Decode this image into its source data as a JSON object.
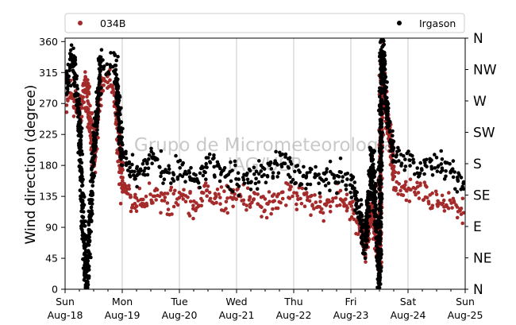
{
  "chart_data": {
    "type": "scatter",
    "ylabel": "Wind direction (degree)",
    "ylim": [
      0,
      365
    ],
    "yticks": [
      0,
      45,
      90,
      135,
      180,
      225,
      270,
      315,
      360
    ],
    "xlim": [
      "2019-08-18",
      "2019-08-25"
    ],
    "x_ticks": [
      {
        "day": "Sun",
        "date": "Aug-18"
      },
      {
        "day": "Mon",
        "date": "Aug-19"
      },
      {
        "day": "Tue",
        "date": "Aug-20"
      },
      {
        "day": "Wed",
        "date": "Aug-21"
      },
      {
        "day": "Thu",
        "date": "Aug-22"
      },
      {
        "day": "Fri",
        "date": "Aug-23"
      },
      {
        "day": "Sat",
        "date": "Aug-24"
      },
      {
        "day": "Sun",
        "date": "Aug-25"
      }
    ],
    "secondary_y_labels": [
      "N",
      "NE",
      "E",
      "SE",
      "S",
      "SW",
      "W",
      "NW",
      "N"
    ],
    "grid": "vertical at day ticks",
    "legend_placement": "top, above plot",
    "watermark": [
      "Grupo de Micrometeorologia",
      "IAG/USP"
    ],
    "series": [
      {
        "name": "034B",
        "color": "#a52a2a",
        "approx_points": [
          {
            "x": "2019-08-18T00:00",
            "y": 275
          },
          {
            "x": "2019-08-18T03:00",
            "y": 285
          },
          {
            "x": "2019-08-18T06:00",
            "y": 255
          },
          {
            "x": "2019-08-18T09:00",
            "y": 300
          },
          {
            "x": "2019-08-18T12:00",
            "y": 185
          },
          {
            "x": "2019-08-18T15:00",
            "y": 305
          },
          {
            "x": "2019-08-18T18:00",
            "y": 300
          },
          {
            "x": "2019-08-18T21:00",
            "y": 290
          },
          {
            "x": "2019-08-19T00:00",
            "y": 150
          },
          {
            "x": "2019-08-19T06:00",
            "y": 125
          },
          {
            "x": "2019-08-19T12:00",
            "y": 140
          },
          {
            "x": "2019-08-19T18:00",
            "y": 130
          },
          {
            "x": "2019-08-20T00:00",
            "y": 135
          },
          {
            "x": "2019-08-20T06:00",
            "y": 125
          },
          {
            "x": "2019-08-20T12:00",
            "y": 140
          },
          {
            "x": "2019-08-20T18:00",
            "y": 130
          },
          {
            "x": "2019-08-21T00:00",
            "y": 135
          },
          {
            "x": "2019-08-21T06:00",
            "y": 130
          },
          {
            "x": "2019-08-21T12:00",
            "y": 125
          },
          {
            "x": "2019-08-21T18:00",
            "y": 135
          },
          {
            "x": "2019-08-22T00:00",
            "y": 140
          },
          {
            "x": "2019-08-22T06:00",
            "y": 130
          },
          {
            "x": "2019-08-22T12:00",
            "y": 125
          },
          {
            "x": "2019-08-22T18:00",
            "y": 130
          },
          {
            "x": "2019-08-23T00:00",
            "y": 120
          },
          {
            "x": "2019-08-23T04:00",
            "y": 90
          },
          {
            "x": "2019-08-23T06:00",
            "y": 55
          },
          {
            "x": "2019-08-23T09:00",
            "y": 120
          },
          {
            "x": "2019-08-23T12:00",
            "y": 30
          },
          {
            "x": "2019-08-23T13:00",
            "y": 340
          },
          {
            "x": "2019-08-23T15:00",
            "y": 250
          },
          {
            "x": "2019-08-23T18:00",
            "y": 160
          },
          {
            "x": "2019-08-24T00:00",
            "y": 145
          },
          {
            "x": "2019-08-24T06:00",
            "y": 140
          },
          {
            "x": "2019-08-24T12:00",
            "y": 130
          },
          {
            "x": "2019-08-24T18:00",
            "y": 125
          },
          {
            "x": "2019-08-25T00:00",
            "y": 120
          }
        ]
      },
      {
        "name": "Irgason",
        "color": "#000000",
        "approx_points": [
          {
            "x": "2019-08-18T00:00",
            "y": 290
          },
          {
            "x": "2019-08-18T03:00",
            "y": 340
          },
          {
            "x": "2019-08-18T06:00",
            "y": 250
          },
          {
            "x": "2019-08-18T07:00",
            "y": 150
          },
          {
            "x": "2019-08-18T09:00",
            "y": 5
          },
          {
            "x": "2019-08-18T12:00",
            "y": 195
          },
          {
            "x": "2019-08-18T15:00",
            "y": 330
          },
          {
            "x": "2019-08-18T21:00",
            "y": 325
          },
          {
            "x": "2019-08-19T00:00",
            "y": 190
          },
          {
            "x": "2019-08-19T06:00",
            "y": 165
          },
          {
            "x": "2019-08-19T12:00",
            "y": 190
          },
          {
            "x": "2019-08-19T18:00",
            "y": 170
          },
          {
            "x": "2019-08-20T00:00",
            "y": 170
          },
          {
            "x": "2019-08-20T06:00",
            "y": 160
          },
          {
            "x": "2019-08-20T12:00",
            "y": 180
          },
          {
            "x": "2019-08-20T18:00",
            "y": 165
          },
          {
            "x": "2019-08-21T00:00",
            "y": 165
          },
          {
            "x": "2019-08-21T06:00",
            "y": 160
          },
          {
            "x": "2019-08-21T12:00",
            "y": 170
          },
          {
            "x": "2019-08-21T18:00",
            "y": 185
          },
          {
            "x": "2019-08-22T00:00",
            "y": 170
          },
          {
            "x": "2019-08-22T06:00",
            "y": 165
          },
          {
            "x": "2019-08-22T12:00",
            "y": 160
          },
          {
            "x": "2019-08-22T18:00",
            "y": 165
          },
          {
            "x": "2019-08-23T00:00",
            "y": 155
          },
          {
            "x": "2019-08-23T04:00",
            "y": 110
          },
          {
            "x": "2019-08-23T06:00",
            "y": 60
          },
          {
            "x": "2019-08-23T09:00",
            "y": 200
          },
          {
            "x": "2019-08-23T12:00",
            "y": 10
          },
          {
            "x": "2019-08-23T13:00",
            "y": 355
          },
          {
            "x": "2019-08-23T15:00",
            "y": 260
          },
          {
            "x": "2019-08-23T18:00",
            "y": 195
          },
          {
            "x": "2019-08-24T00:00",
            "y": 185
          },
          {
            "x": "2019-08-24T06:00",
            "y": 175
          },
          {
            "x": "2019-08-24T12:00",
            "y": 180
          },
          {
            "x": "2019-08-24T18:00",
            "y": 170
          },
          {
            "x": "2019-08-25T00:00",
            "y": 150
          }
        ]
      }
    ]
  }
}
